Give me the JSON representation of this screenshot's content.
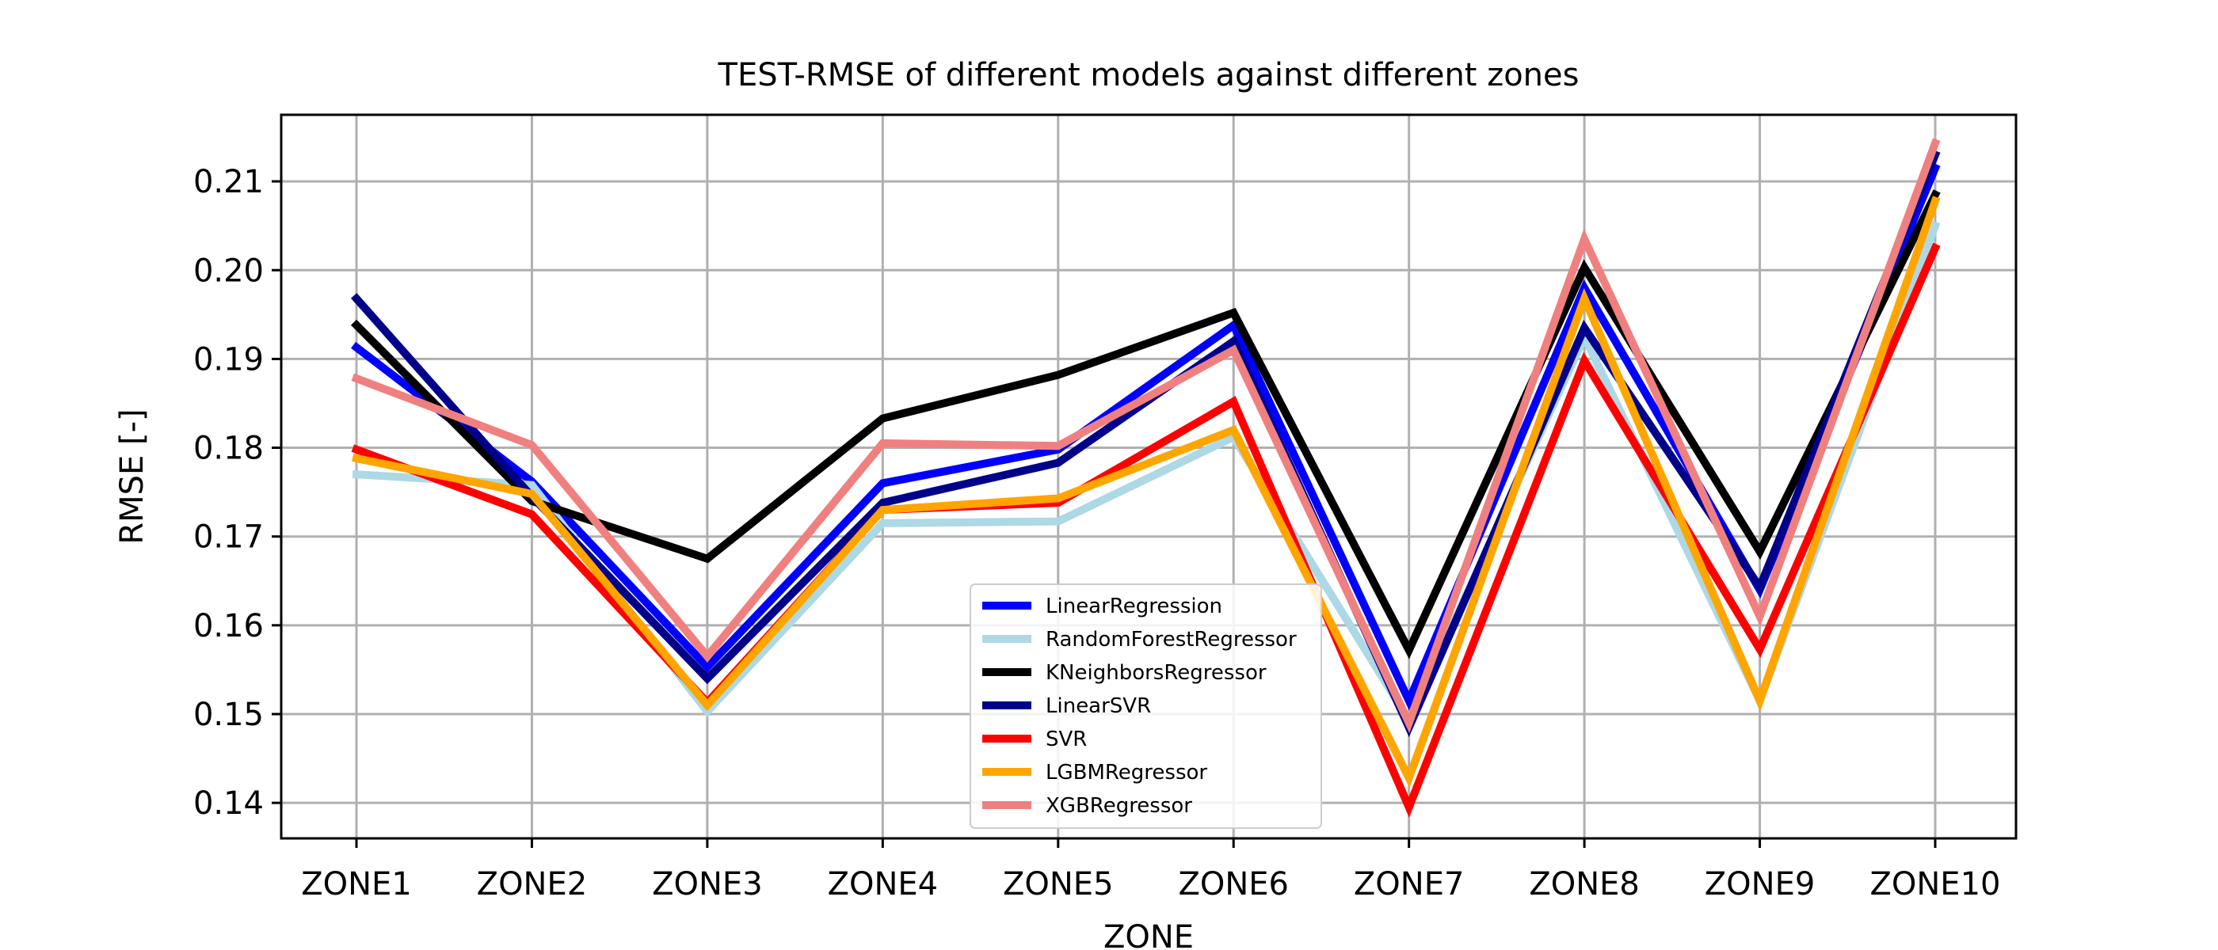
{
  "chart_data": {
    "type": "line",
    "title": "TEST-RMSE of different models against different zones",
    "xlabel": "ZONE",
    "ylabel": "RMSE [-]",
    "categories": [
      "ZONE1",
      "ZONE2",
      "ZONE3",
      "ZONE4",
      "ZONE5",
      "ZONE6",
      "ZONE7",
      "ZONE8",
      "ZONE9",
      "ZONE10"
    ],
    "ylim": [
      0.136,
      0.2175
    ],
    "yticks": [
      0.14,
      0.15,
      0.16,
      0.17,
      0.18,
      0.19,
      0.2,
      0.21
    ],
    "ytick_labels": [
      "0.14",
      "0.15",
      "0.16",
      "0.17",
      "0.18",
      "0.19",
      "0.20",
      "0.21"
    ],
    "grid": true,
    "legend_position": "bottom-center",
    "series": [
      {
        "name": "LinearRegression",
        "color": "#0000ff",
        "values": [
          0.1913,
          0.1762,
          0.1553,
          0.176,
          0.1798,
          0.1938,
          0.1515,
          0.198,
          0.164,
          0.2115
        ]
      },
      {
        "name": "RandomForestRegressor",
        "color": "#add8e6",
        "values": [
          0.177,
          0.1758,
          0.1503,
          0.1715,
          0.1717,
          0.1812,
          0.1493,
          0.1925,
          0.1515,
          0.205
        ]
      },
      {
        "name": "KNeighborsRegressor",
        "color": "#000000",
        "values": [
          0.1938,
          0.174,
          0.1675,
          0.1833,
          0.1882,
          0.1952,
          0.1572,
          0.2003,
          0.1683,
          0.2085
        ]
      },
      {
        "name": "LinearSVR",
        "color": "#00008b",
        "values": [
          0.1968,
          0.1745,
          0.154,
          0.1738,
          0.1783,
          0.192,
          0.1485,
          0.1935,
          0.1643,
          0.213
        ]
      },
      {
        "name": "SVR",
        "color": "#ff0000",
        "values": [
          0.1798,
          0.1725,
          0.1513,
          0.173,
          0.1738,
          0.1852,
          0.1395,
          0.1898,
          0.1573,
          0.2025
        ]
      },
      {
        "name": "LGBMRegressor",
        "color": "#ffa500",
        "values": [
          0.1788,
          0.1748,
          0.151,
          0.173,
          0.1743,
          0.182,
          0.1428,
          0.1968,
          0.1515,
          0.2078
        ]
      },
      {
        "name": "XGBRegressor",
        "color": "#f08080",
        "values": [
          0.1878,
          0.1803,
          0.1565,
          0.1805,
          0.1802,
          0.191,
          0.149,
          0.2035,
          0.161,
          0.2143
        ]
      }
    ]
  }
}
